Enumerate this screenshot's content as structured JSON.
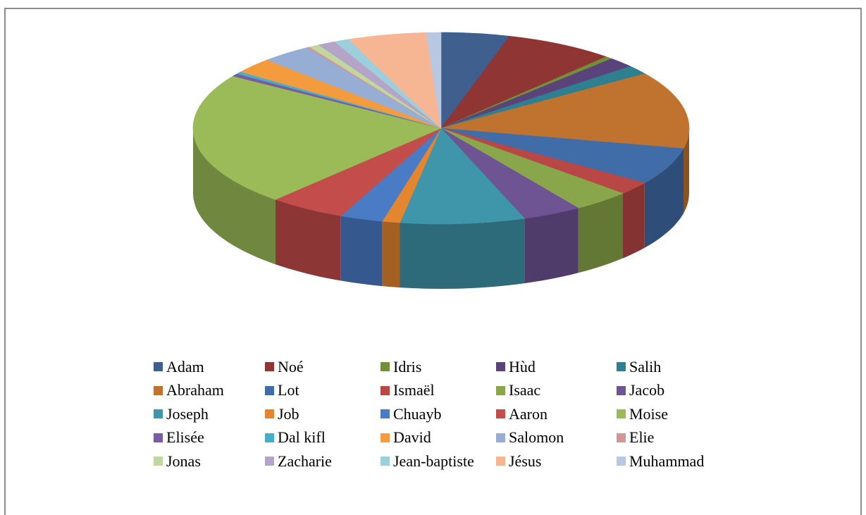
{
  "chart_data": {
    "type": "pie",
    "title": "",
    "legend_position": "bottom",
    "style": "3d",
    "categories": [
      "Adam",
      "Noé",
      "Idris",
      "Hùd",
      "Salih",
      "Abraham",
      "Lot",
      "Ismaël",
      "Isaac",
      "Jacob",
      "Joseph",
      "Job",
      "Chuayb",
      "Aaron",
      "Moise",
      "Elisée",
      "Dal kifl",
      "David",
      "Salomon",
      "Elie",
      "Jonas",
      "Zacharie",
      "Jean-baptiste",
      "Jésus",
      "Muhammad"
    ],
    "values": [
      4.6,
      7.4,
      0.5,
      1.8,
      1.6,
      13.5,
      6.5,
      2.3,
      3.9,
      4.0,
      8.4,
      1.2,
      2.9,
      5.2,
      23.3,
      0.5,
      0.4,
      2.7,
      3.4,
      0.2,
      0.7,
      1.2,
      1.0,
      5.3,
      1.0
    ],
    "colors": [
      "#3f5f8f",
      "#8f3634",
      "#738f39",
      "#5a427a",
      "#2e7f8f",
      "#c0732e",
      "#406da8",
      "#b84746",
      "#8aa64a",
      "#6e5493",
      "#3f95aa",
      "#e3862f",
      "#4a7cc5",
      "#c24d4b",
      "#9bbb59",
      "#7a5ca4",
      "#44b0c8",
      "#f49b3d",
      "#97aed4",
      "#d49595",
      "#c0d8a0",
      "#b3a4c8",
      "#9ccedc",
      "#f6b694",
      "#b8c8e0"
    ]
  }
}
